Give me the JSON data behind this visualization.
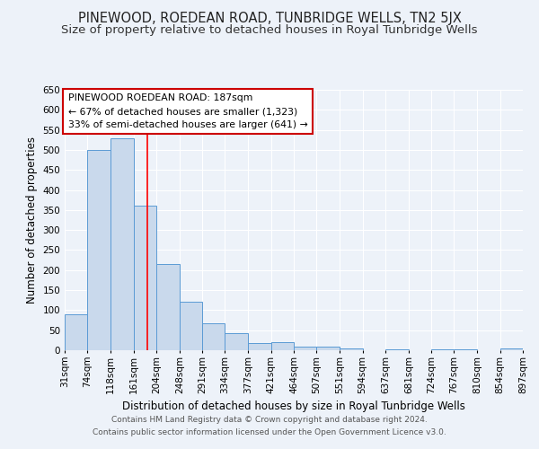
{
  "title": "PINEWOOD, ROEDEAN ROAD, TUNBRIDGE WELLS, TN2 5JX",
  "subtitle": "Size of property relative to detached houses in Royal Tunbridge Wells",
  "xlabel": "Distribution of detached houses by size in Royal Tunbridge Wells",
  "ylabel": "Number of detached properties",
  "bar_edges": [
    31,
    74,
    118,
    161,
    204,
    248,
    291,
    334,
    377,
    421,
    464,
    507,
    551,
    594,
    637,
    681,
    724,
    767,
    810,
    854,
    897
  ],
  "bar_heights": [
    90,
    500,
    530,
    360,
    215,
    122,
    67,
    42,
    17,
    20,
    10,
    10,
    5,
    0,
    2,
    0,
    2,
    2,
    0,
    5
  ],
  "bar_color": "#c9d9ec",
  "bar_edge_color": "#5b9bd5",
  "red_line_x": 187,
  "ylim": [
    0,
    650
  ],
  "yticks": [
    0,
    50,
    100,
    150,
    200,
    250,
    300,
    350,
    400,
    450,
    500,
    550,
    600,
    650
  ],
  "annotation_title": "PINEWOOD ROEDEAN ROAD: 187sqm",
  "annotation_line1": "← 67% of detached houses are smaller (1,323)",
  "annotation_line2": "33% of semi-detached houses are larger (641) →",
  "annotation_box_color": "#ffffff",
  "annotation_box_edge_color": "#cc0000",
  "footer1": "Contains HM Land Registry data © Crown copyright and database right 2024.",
  "footer2": "Contains public sector information licensed under the Open Government Licence v3.0.",
  "bg_color": "#edf2f9",
  "grid_color": "#ffffff",
  "title_fontsize": 10.5,
  "subtitle_fontsize": 9.5,
  "tick_fontsize": 7.5,
  "ylabel_fontsize": 8.5,
  "xlabel_fontsize": 8.5,
  "footer_fontsize": 6.5
}
